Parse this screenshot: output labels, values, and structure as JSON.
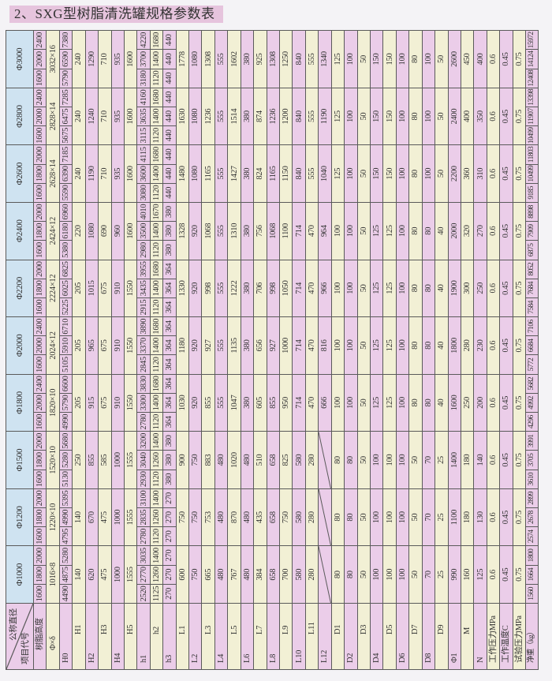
{
  "title": "2、SXG型树脂清洗罐规格参数表",
  "colors": {
    "header": "#cfe3f1",
    "row_a": "#ebcde9",
    "row_b": "#f2f0d5",
    "title_bg": "#e6c4dd"
  },
  "table": {
    "corner": {
      "top": "公称直径",
      "bottom": "项目代号"
    },
    "row_labels": [
      "树脂高度",
      "Φ×δ",
      "H0",
      "H1",
      "H2",
      "H3",
      "H4",
      "H5",
      "h1",
      "h2",
      "h3",
      "L1",
      "L2",
      "L3",
      "L4",
      "L5",
      "L6",
      "L7",
      "L8",
      "L9",
      "L10",
      "L11",
      "L12",
      "D1",
      "D2",
      "D3",
      "D4",
      "D5",
      "D6",
      "D7",
      "D8",
      "D9",
      "Φ1",
      "M",
      "N",
      "工作压力MPa",
      "工作温度C",
      "试验压力MPa",
      "净重（kg）"
    ],
    "groups": [
      {
        "name": "Φ1000",
        "rows": [
          [
            "1600",
            "1800",
            "2000"
          ],
          "1016×8",
          [
            "4490",
            "4875",
            "5280"
          ],
          "140",
          "620",
          "475",
          "1000",
          "1555",
          [
            "2520",
            "2770",
            "3035"
          ],
          [
            "1125",
            "1260",
            "1400"
          ],
          [
            "270",
            "270",
            "270"
          ],
          "600",
          "750",
          "665",
          "480",
          "767",
          "480",
          "384",
          "658",
          "700",
          "580",
          "280",
          "",
          "80",
          "80",
          "50",
          "100",
          "100",
          "100",
          "50",
          "70",
          "25",
          "990",
          "160",
          "125",
          "0.6",
          "0.45",
          "0.75",
          [
            "1560",
            "1664",
            "1800"
          ]
        ]
      },
      {
        "name": "Φ1200",
        "rows": [
          [
            "1600",
            "1800",
            "2000"
          ],
          "1220×10",
          [
            "4795",
            "4990",
            "5395"
          ],
          "140",
          "670",
          "475",
          "1000",
          "1555",
          [
            "2780",
            "2835",
            "3100"
          ],
          [
            "1120",
            "1260",
            "1400"
          ],
          [
            "270",
            "270",
            "270"
          ],
          "750",
          "750",
          "753",
          "480",
          "870",
          "480",
          "435",
          "658",
          "750",
          "580",
          "280",
          "",
          "80",
          "80",
          "50",
          "100",
          "100",
          "100",
          "50",
          "70",
          "25",
          "1100",
          "180",
          "130",
          "0.6",
          "0.45",
          "0.75",
          [
            "2574",
            "2678",
            "2899"
          ]
        ]
      },
      {
        "name": "Φ1500",
        "rows": [
          [
            "1600",
            "1800",
            "2000"
          ],
          "1520×10",
          [
            "5130",
            "5280",
            "5680"
          ],
          "250",
          "855",
          "585",
          "1000",
          "1555",
          [
            "2930",
            "3040",
            "3200"
          ],
          [
            "1120",
            "1260",
            "1400"
          ],
          [
            "380",
            "380",
            "380"
          ],
          "900",
          "750",
          "883",
          "480",
          "1020",
          "480",
          "510",
          "658",
          "825",
          "580",
          "280",
          "",
          "80",
          "80",
          "50",
          "100",
          "100",
          "100",
          "50",
          "70",
          "25",
          "1400",
          "180",
          "140",
          "0.6",
          "0.45",
          "0.75",
          [
            "3610",
            "3705",
            "3991"
          ]
        ]
      },
      {
        "name": "Φ1800",
        "rows": [
          [
            "1600",
            "2000",
            "2400"
          ],
          "1820×10",
          [
            "4990",
            "5790",
            "6600"
          ],
          "205",
          "915",
          "675",
          "910",
          "1550",
          [
            "2780",
            "3300",
            "3830"
          ],
          [
            "1120",
            "1400",
            "1680"
          ],
          [
            "364",
            "364",
            "364"
          ],
          "1030",
          "920",
          "855",
          "555",
          "1047",
          "380",
          "605",
          "855",
          "950",
          "714",
          "470",
          "666",
          "100",
          "100",
          "50",
          "125",
          "125",
          "100",
          "80",
          "80",
          "40",
          "1600",
          "250",
          "200",
          "0.6",
          "0.45",
          "0.75",
          [
            "4296",
            "4992",
            "5682"
          ]
        ]
      },
      {
        "name": "Φ2000",
        "rows": [
          [
            "1600",
            "2000",
            "2400"
          ],
          "2024×12",
          [
            "5105",
            "5910",
            "6710"
          ],
          "205",
          "965",
          "675",
          "910",
          "1550",
          [
            "2845",
            "3370",
            "3890"
          ],
          [
            "1120",
            "1400",
            "1680"
          ],
          [
            "364",
            "364",
            "364"
          ],
          "1180",
          "920",
          "927",
          "555",
          "1135",
          "380",
          "656",
          "927",
          "1000",
          "714",
          "470",
          "816",
          "100",
          "100",
          "50",
          "125",
          "125",
          "100",
          "80",
          "80",
          "40",
          "1800",
          "280",
          "230",
          "0.6",
          "0.45",
          "0.75",
          [
            "5772",
            "6684",
            "7106"
          ]
        ]
      },
      {
        "name": "Φ2200",
        "rows": [
          [
            "1600",
            "1800",
            "2000"
          ],
          "2224×12",
          [
            "5225",
            "6025",
            "6825"
          ],
          "205",
          "1015",
          "675",
          "910",
          "1550",
          [
            "2915",
            "3435",
            "3955"
          ],
          [
            "1120",
            "1400",
            "1680"
          ],
          [
            "364",
            "364",
            "364"
          ],
          "1330",
          "920",
          "998",
          "555",
          "1222",
          "380",
          "706",
          "998",
          "1050",
          "714",
          "470",
          "966",
          "100",
          "100",
          "50",
          "125",
          "125",
          "100",
          "80",
          "80",
          "40",
          "1900",
          "300",
          "250",
          "0.6",
          "0.45",
          "0.75",
          [
            "7584",
            "7684",
            "8052"
          ]
        ]
      },
      {
        "name": "Φ2400",
        "rows": [
          [
            "1600",
            "1800",
            "2000"
          ],
          "2424×12",
          [
            "5380",
            "6180",
            "6960"
          ],
          "220",
          "1080",
          "690",
          "960",
          "1600",
          [
            "2980",
            "3500",
            "4010"
          ],
          [
            "1120",
            "1400",
            "1670"
          ],
          [
            "380",
            "380",
            "380"
          ],
          "1328",
          "920",
          "1068",
          "555",
          "1310",
          "380",
          "756",
          "1068",
          "1100",
          "714",
          "470",
          "964",
          "100",
          "100",
          "50",
          "125",
          "125",
          "100",
          "80",
          "80",
          "40",
          "2000",
          "320",
          "270",
          "0.6",
          "0.45",
          "0.75",
          [
            "6875",
            "7909",
            "8898"
          ]
        ]
      },
      {
        "name": "Φ2600",
        "rows": [
          [
            "1600",
            "1800",
            "2000"
          ],
          "2628×14",
          [
            "5590",
            "6390",
            "7185"
          ],
          "240",
          "1190",
          "710",
          "935",
          "1600",
          [
            "3080",
            "3600",
            "4115"
          ],
          [
            "1120",
            "1400",
            "1680"
          ],
          [
            "440",
            "440",
            "440"
          ],
          "1480",
          "1080",
          "1165",
          "555",
          "1427",
          "380",
          "824",
          "1165",
          "1150",
          "840",
          "555",
          "1040",
          "125",
          "100",
          "50",
          "150",
          "150",
          "100",
          "80",
          "100",
          "50",
          "2200",
          "360",
          "310",
          "0.6",
          "0.45",
          "0.75",
          [
            "9185",
            "10499",
            "11803"
          ]
        ]
      },
      {
        "name": "Φ2800",
        "rows": [
          [
            "1600",
            "2000",
            "2400"
          ],
          "2828×14",
          [
            "5675",
            "6475",
            "7285"
          ],
          "240",
          "1240",
          "710",
          "935",
          "1600",
          [
            "3115",
            "3635",
            "4160"
          ],
          [
            "1120",
            "1400",
            "1680"
          ],
          [
            "440",
            "440",
            "440"
          ],
          "1630",
          "1080",
          "1236",
          "555",
          "1514",
          "380",
          "874",
          "1236",
          "1200",
          "840",
          "555",
          "1190",
          "125",
          "100",
          "50",
          "150",
          "150",
          "100",
          "80",
          "100",
          "50",
          "2400",
          "400",
          "350",
          "0.6",
          "0.45",
          "0.75",
          [
            "10499",
            "11907",
            "13398"
          ]
        ]
      },
      {
        "name": "Φ3000",
        "rows": [
          [
            "1600",
            "2000",
            "2400"
          ],
          "3032×16",
          [
            "5790",
            "6590",
            "7380"
          ],
          "240",
          "1290",
          "710",
          "935",
          "1600",
          [
            "3180",
            "3700",
            "4220"
          ],
          [
            "1120",
            "1400",
            "1680"
          ],
          [
            "440",
            "440",
            "440"
          ],
          "1778",
          "1080",
          "1308",
          "555",
          "1602",
          "380",
          "925",
          "1308",
          "1250",
          "840",
          "555",
          "1340",
          "125",
          "100",
          "50",
          "150",
          "150",
          "100",
          "80",
          "100",
          "50",
          "2600",
          "450",
          "400",
          "0.6",
          "0.45",
          "0.75",
          [
            "12408",
            "14124",
            "15972"
          ]
        ]
      }
    ]
  }
}
